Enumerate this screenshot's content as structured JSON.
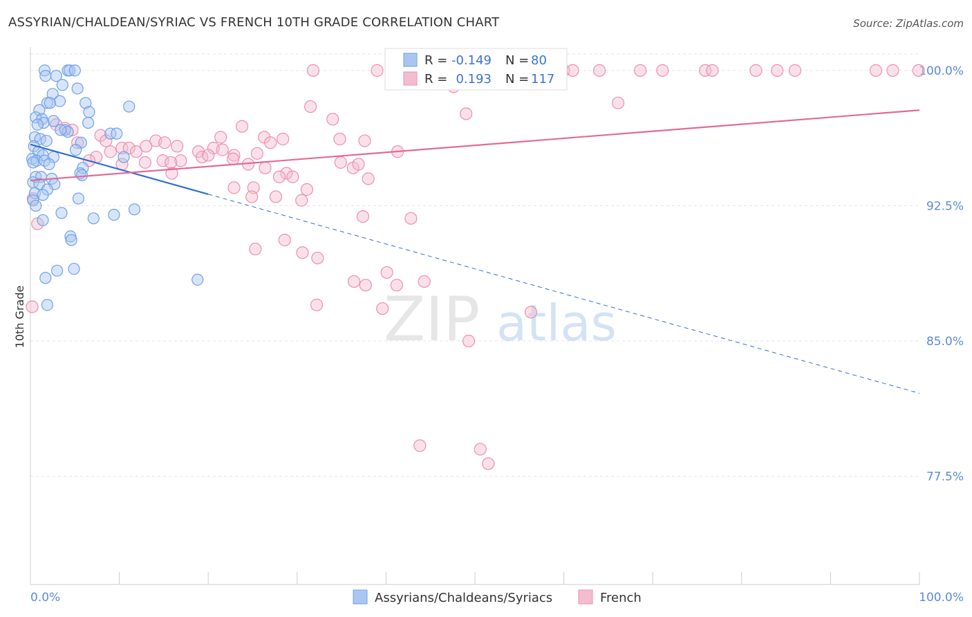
{
  "title": "ASSYRIAN/CHALDEAN/SYRIAC VS FRENCH 10TH GRADE CORRELATION CHART",
  "source": "Source: ZipAtlas.com",
  "colors": {
    "blue": "#6fa1e6",
    "blue_fill": "#a9c6f1",
    "blue_line": "#2f6fd0",
    "pink": "#eb8fb0",
    "pink_fill": "#f4bccf",
    "pink_line": "#e26a97",
    "accent_text": "#5b8bd6",
    "grid": "#e3e3e3"
  },
  "legend_top": {
    "rows": [
      {
        "r_label": "R =",
        "r_value": "-0.149",
        "n_label": "N =",
        "n_value": "80"
      },
      {
        "r_label": "R =",
        "r_value": "0.193",
        "n_label": "N =",
        "n_value": "117"
      }
    ]
  },
  "legend_bottom": {
    "items": [
      "Assyrians/Chaldeans/Syriacs",
      "French"
    ]
  },
  "watermark": {
    "part1": "ZIP",
    "part2": "atlas"
  },
  "chart_data": {
    "type": "scatter",
    "title": "ASSYRIAN/CHALDEAN/SYRIAC VS FRENCH 10TH GRADE CORRELATION CHART",
    "xlabel": "",
    "ylabel": "10th Grade",
    "xlim": [
      0,
      100
    ],
    "ylim": [
      71.5,
      101.3
    ],
    "x_tick_labels": [
      "0.0%",
      "100.0%"
    ],
    "y_ticks": [
      77.5,
      85.0,
      92.5,
      100.0
    ],
    "y_tick_labels": [
      "77.5%",
      "85.0%",
      "92.5%",
      "100.0%"
    ],
    "grid": true,
    "legend_position": "top-center",
    "series": [
      {
        "name": "Assyrians/Chaldeans/Syriacs",
        "R": -0.149,
        "N": 80,
        "trend": {
          "x0": 0,
          "y0": 95.9,
          "x1": 100,
          "y1": 82.1,
          "solid_until_x": 20
        },
        "points": [
          [
            1.6,
            100
          ],
          [
            4.2,
            100
          ],
          [
            4.4,
            100
          ],
          [
            5.0,
            100
          ],
          [
            1.7,
            99.7
          ],
          [
            2.9,
            99.7
          ],
          [
            3.6,
            99.2
          ],
          [
            5.3,
            99.0
          ],
          [
            2.5,
            98.7
          ],
          [
            3.3,
            98.3
          ],
          [
            1.9,
            98.2
          ],
          [
            2.2,
            98.2
          ],
          [
            6.2,
            98.2
          ],
          [
            11.1,
            98.0
          ],
          [
            1.0,
            97.8
          ],
          [
            6.6,
            97.7
          ],
          [
            0.6,
            97.4
          ],
          [
            1.3,
            97.3
          ],
          [
            2.6,
            97.2
          ],
          [
            1.5,
            97.1
          ],
          [
            0.8,
            97.0
          ],
          [
            6.5,
            97.1
          ],
          [
            3.9,
            96.7
          ],
          [
            4.2,
            96.6
          ],
          [
            3.4,
            96.7
          ],
          [
            9.0,
            96.5
          ],
          [
            9.7,
            96.5
          ],
          [
            0.5,
            96.3
          ],
          [
            1.1,
            96.2
          ],
          [
            1.8,
            96.1
          ],
          [
            5.7,
            96.0
          ],
          [
            0.4,
            95.8
          ],
          [
            0.9,
            95.5
          ],
          [
            5.1,
            95.6
          ],
          [
            1.4,
            95.3
          ],
          [
            2.6,
            95.2
          ],
          [
            10.5,
            95.2
          ],
          [
            0.2,
            95.1
          ],
          [
            0.7,
            95.0
          ],
          [
            1.6,
            95.0
          ],
          [
            0.3,
            94.9
          ],
          [
            2.1,
            94.8
          ],
          [
            5.9,
            94.6
          ],
          [
            5.6,
            94.3
          ],
          [
            5.8,
            94.2
          ],
          [
            0.6,
            94.1
          ],
          [
            1.2,
            94.1
          ],
          [
            2.4,
            94.0
          ],
          [
            0.3,
            93.8
          ],
          [
            1.0,
            93.7
          ],
          [
            2.7,
            93.7
          ],
          [
            1.9,
            93.4
          ],
          [
            0.5,
            93.2
          ],
          [
            1.4,
            93.1
          ],
          [
            5.4,
            92.9
          ],
          [
            0.3,
            92.8
          ],
          [
            0.6,
            92.5
          ],
          [
            11.7,
            92.3
          ],
          [
            3.5,
            92.1
          ],
          [
            9.4,
            92.0
          ],
          [
            7.1,
            91.8
          ],
          [
            1.4,
            91.7
          ],
          [
            4.5,
            90.8
          ],
          [
            4.6,
            90.6
          ],
          [
            4.9,
            89.0
          ],
          [
            3.0,
            88.9
          ],
          [
            1.7,
            88.5
          ],
          [
            18.8,
            88.4
          ],
          [
            1.9,
            87.0
          ]
        ]
      },
      {
        "name": "French",
        "R": 0.193,
        "N": 117,
        "trend": {
          "x0": 0,
          "y0": 93.9,
          "x1": 100,
          "y1": 97.8
        },
        "points": [
          [
            31.8,
            100
          ],
          [
            39.0,
            100
          ],
          [
            41.6,
            100
          ],
          [
            42.7,
            100
          ],
          [
            43.5,
            100
          ],
          [
            47.3,
            100
          ],
          [
            48.6,
            100
          ],
          [
            50.1,
            100
          ],
          [
            50.5,
            100
          ],
          [
            52.2,
            100
          ],
          [
            54.9,
            100
          ],
          [
            57.0,
            100
          ],
          [
            60.0,
            100
          ],
          [
            61.0,
            100
          ],
          [
            64.0,
            100
          ],
          [
            68.6,
            100
          ],
          [
            71.1,
            100
          ],
          [
            75.9,
            100
          ],
          [
            76.7,
            100
          ],
          [
            81.6,
            100
          ],
          [
            84.0,
            100
          ],
          [
            86.0,
            100
          ],
          [
            95.1,
            100
          ],
          [
            97.0,
            100
          ],
          [
            99.9,
            100
          ],
          [
            42.8,
            99.6
          ],
          [
            44.6,
            99.4
          ],
          [
            47.6,
            99.1
          ],
          [
            53.7,
            99.3
          ],
          [
            31.5,
            98.0
          ],
          [
            66.1,
            98.2
          ],
          [
            49.0,
            97.6
          ],
          [
            34.0,
            97.3
          ],
          [
            2.9,
            97.0
          ],
          [
            3.9,
            96.8
          ],
          [
            23.8,
            96.9
          ],
          [
            4.7,
            96.7
          ],
          [
            21.4,
            96.3
          ],
          [
            26.3,
            96.3
          ],
          [
            28.4,
            96.2
          ],
          [
            34.8,
            96.2
          ],
          [
            7.9,
            96.4
          ],
          [
            5.3,
            96.0
          ],
          [
            8.5,
            96.1
          ],
          [
            14.1,
            96.1
          ],
          [
            15.1,
            96.0
          ],
          [
            27.0,
            96.0
          ],
          [
            37.6,
            96.1
          ],
          [
            10.3,
            95.7
          ],
          [
            11.1,
            95.7
          ],
          [
            13.0,
            95.8
          ],
          [
            16.5,
            95.8
          ],
          [
            20.6,
            95.7
          ],
          [
            9.0,
            95.5
          ],
          [
            11.9,
            95.5
          ],
          [
            18.9,
            95.5
          ],
          [
            21.6,
            95.6
          ],
          [
            22.9,
            95.3
          ],
          [
            25.5,
            95.4
          ],
          [
            41.3,
            95.5
          ],
          [
            7.4,
            95.2
          ],
          [
            6.6,
            95.0
          ],
          [
            14.9,
            95.0
          ],
          [
            16.9,
            95.0
          ],
          [
            19.3,
            95.2
          ],
          [
            20.0,
            95.3
          ],
          [
            22.8,
            95.1
          ],
          [
            24.5,
            94.8
          ],
          [
            34.9,
            94.9
          ],
          [
            36.3,
            94.6
          ],
          [
            36.9,
            94.8
          ],
          [
            10.3,
            94.8
          ],
          [
            12.9,
            94.9
          ],
          [
            15.8,
            94.9
          ],
          [
            26.4,
            94.6
          ],
          [
            28.8,
            94.3
          ],
          [
            15.9,
            94.3
          ],
          [
            28.0,
            94.1
          ],
          [
            29.5,
            94.1
          ],
          [
            38.0,
            94.0
          ],
          [
            22.9,
            93.5
          ],
          [
            25.1,
            93.5
          ],
          [
            31.1,
            93.4
          ],
          [
            24.9,
            93.0
          ],
          [
            30.5,
            92.8
          ],
          [
            27.6,
            93.0
          ],
          [
            0.3,
            92.9
          ],
          [
            37.4,
            91.9
          ],
          [
            42.8,
            91.8
          ],
          [
            0.8,
            91.5
          ],
          [
            28.6,
            90.6
          ],
          [
            25.3,
            90.1
          ],
          [
            30.6,
            89.9
          ],
          [
            32.3,
            89.6
          ],
          [
            40.1,
            88.8
          ],
          [
            36.4,
            88.3
          ],
          [
            37.7,
            88.1
          ],
          [
            41.2,
            88.1
          ],
          [
            44.3,
            88.3
          ],
          [
            32.2,
            87.0
          ],
          [
            39.6,
            86.8
          ],
          [
            56.3,
            86.6
          ],
          [
            49.3,
            85.0
          ],
          [
            0.2,
            86.9
          ],
          [
            43.8,
            79.2
          ],
          [
            50.6,
            79.0
          ],
          [
            51.5,
            78.2
          ]
        ]
      }
    ]
  }
}
